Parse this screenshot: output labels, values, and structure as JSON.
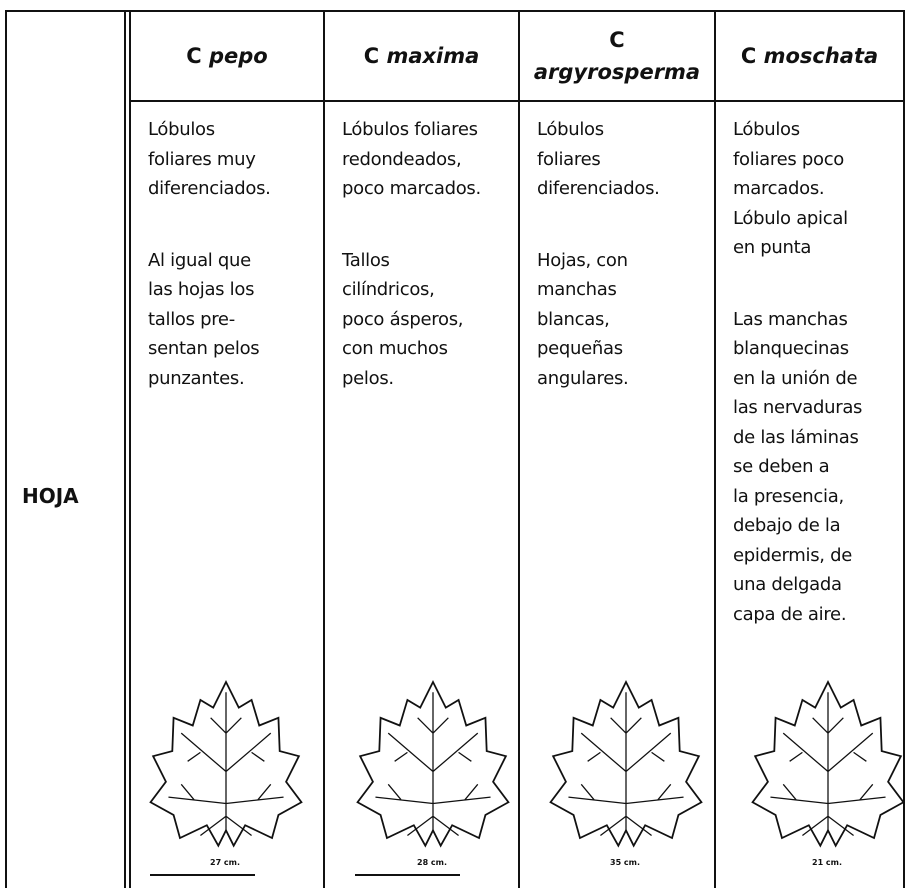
{
  "table": {
    "row_label": "HOJA",
    "columns": [
      {
        "genus": "C",
        "species": "pepo",
        "paragraphs": [
          [
            "Lóbulos",
            "foliares muy",
            "diferenciados."
          ],
          [
            "Al igual que",
            "las hojas los",
            "tallos pre-",
            "sentan pelos",
            "punzantes."
          ]
        ],
        "scale": "27 cm."
      },
      {
        "genus": "C",
        "species": "maxima",
        "paragraphs": [
          [
            "Lóbulos foliares",
            "redondeados,",
            "poco marcados."
          ],
          [
            "Tallos",
            "cilíndricos,",
            "poco ásperos,",
            "con muchos",
            "pelos."
          ]
        ],
        "scale": "28 cm."
      },
      {
        "genus": "C",
        "species": "argyrosperma",
        "paragraphs": [
          [
            "Lóbulos",
            "foliares",
            "diferenciados."
          ],
          [
            "Hojas, con",
            "manchas",
            "blancas,",
            "pequeñas",
            "angulares."
          ]
        ],
        "scale": "35 cm."
      },
      {
        "genus": "C",
        "species": "moschata",
        "paragraphs": [
          [
            "Lóbulos",
            "foliares poco",
            "marcados.",
            "Lóbulo apical",
            "en punta"
          ],
          [
            "Las manchas",
            "blanquecinas",
            "en la unión de",
            "las nervaduras",
            "de las láminas",
            "se deben a",
            "la presencia,",
            "debajo de la",
            "epidermis, de",
            "una delgada",
            "capa de aire."
          ]
        ],
        "scale": "21 cm."
      }
    ]
  }
}
